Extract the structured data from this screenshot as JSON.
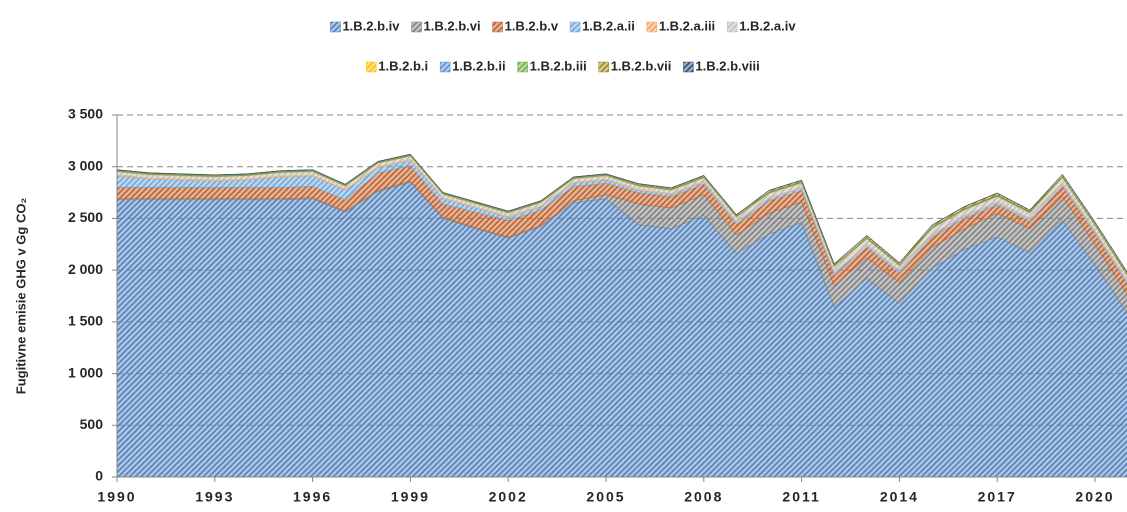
{
  "chart_data": {
    "type": "stacked_area",
    "y_label": "Fugitivne emisie GHG v Gg CO₂",
    "x": [
      1990,
      1991,
      1992,
      1993,
      1994,
      1995,
      1996,
      1997,
      1998,
      1999,
      2000,
      2001,
      2002,
      2003,
      2004,
      2005,
      2006,
      2007,
      2008,
      2009,
      2010,
      2011,
      2012,
      2013,
      2014,
      2015,
      2016,
      2017,
      2018,
      2019,
      2020,
      2021
    ],
    "xlim": [
      1990,
      2021
    ],
    "xticks": [
      1990,
      1993,
      1996,
      1999,
      2002,
      2005,
      2008,
      2011,
      2014,
      2017,
      2020
    ],
    "ylim": [
      0,
      3500
    ],
    "yticks": [
      0,
      500,
      {
        "value": 1000,
        "label": "1 000"
      },
      {
        "value": 1500,
        "label": "1 500"
      },
      {
        "value": 2000,
        "label": "2 000"
      },
      {
        "value": 2500,
        "label": "2 500"
      },
      {
        "value": 3000,
        "label": "3 000"
      },
      {
        "value": 3500,
        "label": "3 500"
      }
    ],
    "grid": true,
    "legend": "top",
    "series": [
      {
        "name": "1.B.2.b.iv",
        "color": "#4f81bd",
        "values": [
          2680,
          2680,
          2680,
          2680,
          2680,
          2680,
          2690,
          2560,
          2760,
          2850,
          2500,
          2400,
          2310,
          2420,
          2650,
          2690,
          2440,
          2400,
          2530,
          2160,
          2350,
          2460,
          1640,
          1920,
          1680,
          2020,
          2200,
          2320,
          2170,
          2480,
          2050,
          1580
        ]
      },
      {
        "name": "1.B.2.b.vi",
        "color": "#7f7f7f",
        "values": [
          10,
          10,
          10,
          10,
          10,
          10,
          10,
          10,
          10,
          10,
          10,
          10,
          10,
          10,
          20,
          40,
          200,
          200,
          200,
          180,
          200,
          200,
          210,
          200,
          200,
          200,
          200,
          230,
          230,
          230,
          200,
          180
        ]
      },
      {
        "name": "1.B.2.b.v",
        "color": "#c0602b",
        "values": [
          110,
          110,
          110,
          110,
          110,
          110,
          110,
          110,
          170,
          150,
          130,
          150,
          160,
          150,
          140,
          110,
          110,
          110,
          100,
          100,
          120,
          110,
          100,
          100,
          90,
          100,
          100,
          80,
          70,
          100,
          100,
          100
        ]
      },
      {
        "name": "1.B.2.a.ii",
        "color": "#6fa8dc",
        "values": [
          110,
          80,
          70,
          60,
          70,
          100,
          100,
          90,
          50,
          50,
          50,
          40,
          30,
          30,
          30,
          30,
          20,
          20,
          20,
          20,
          20,
          20,
          20,
          20,
          20,
          20,
          20,
          20,
          20,
          20,
          20,
          20
        ]
      },
      {
        "name": "1.B.2.a.iii",
        "color": "#f4a460",
        "values": [
          10,
          10,
          10,
          10,
          10,
          10,
          10,
          10,
          10,
          10,
          10,
          10,
          10,
          10,
          10,
          10,
          10,
          10,
          10,
          10,
          10,
          10,
          10,
          10,
          10,
          10,
          10,
          10,
          10,
          10,
          10,
          10
        ]
      },
      {
        "name": "1.B.2.a.iv",
        "color": "#bfbfbf",
        "values": [
          30,
          30,
          30,
          30,
          30,
          30,
          30,
          30,
          30,
          30,
          30,
          30,
          30,
          30,
          30,
          30,
          30,
          30,
          30,
          40,
          40,
          40,
          50,
          50,
          40,
          50,
          50,
          50,
          50,
          50,
          50,
          50
        ]
      },
      {
        "name": "1.B.2.b.i",
        "color": "#ffc000",
        "values": [
          5,
          5,
          5,
          5,
          5,
          5,
          5,
          5,
          5,
          5,
          5,
          5,
          5,
          5,
          5,
          5,
          5,
          5,
          5,
          5,
          5,
          5,
          5,
          5,
          5,
          5,
          5,
          5,
          5,
          5,
          5,
          5
        ]
      },
      {
        "name": "1.B.2.b.ii",
        "color": "#5b8fd9",
        "values": [
          5,
          5,
          5,
          5,
          5,
          5,
          5,
          5,
          5,
          5,
          5,
          5,
          5,
          5,
          5,
          5,
          5,
          5,
          5,
          5,
          5,
          5,
          5,
          5,
          5,
          5,
          5,
          5,
          5,
          5,
          5,
          5
        ]
      },
      {
        "name": "1.B.2.b.iii",
        "color": "#70ad47",
        "values": [
          5,
          5,
          5,
          5,
          5,
          5,
          5,
          5,
          5,
          5,
          5,
          5,
          5,
          5,
          5,
          5,
          5,
          5,
          5,
          5,
          5,
          5,
          5,
          5,
          5,
          5,
          5,
          5,
          5,
          5,
          5,
          5
        ]
      },
      {
        "name": "1.B.2.b.vii",
        "color": "#a08a1c",
        "values": [
          5,
          5,
          5,
          5,
          5,
          5,
          5,
          5,
          5,
          5,
          5,
          5,
          5,
          5,
          5,
          5,
          10,
          10,
          10,
          10,
          15,
          15,
          15,
          20,
          15,
          20,
          20,
          20,
          15,
          20,
          20,
          20
        ]
      },
      {
        "name": "1.B.2.b.viii",
        "color": "#2e4d7b",
        "values": [
          2,
          2,
          2,
          2,
          2,
          2,
          2,
          2,
          2,
          2,
          2,
          2,
          2,
          2,
          2,
          2,
          2,
          2,
          2,
          2,
          2,
          2,
          2,
          2,
          2,
          2,
          2,
          2,
          2,
          2,
          2,
          2
        ]
      }
    ]
  }
}
